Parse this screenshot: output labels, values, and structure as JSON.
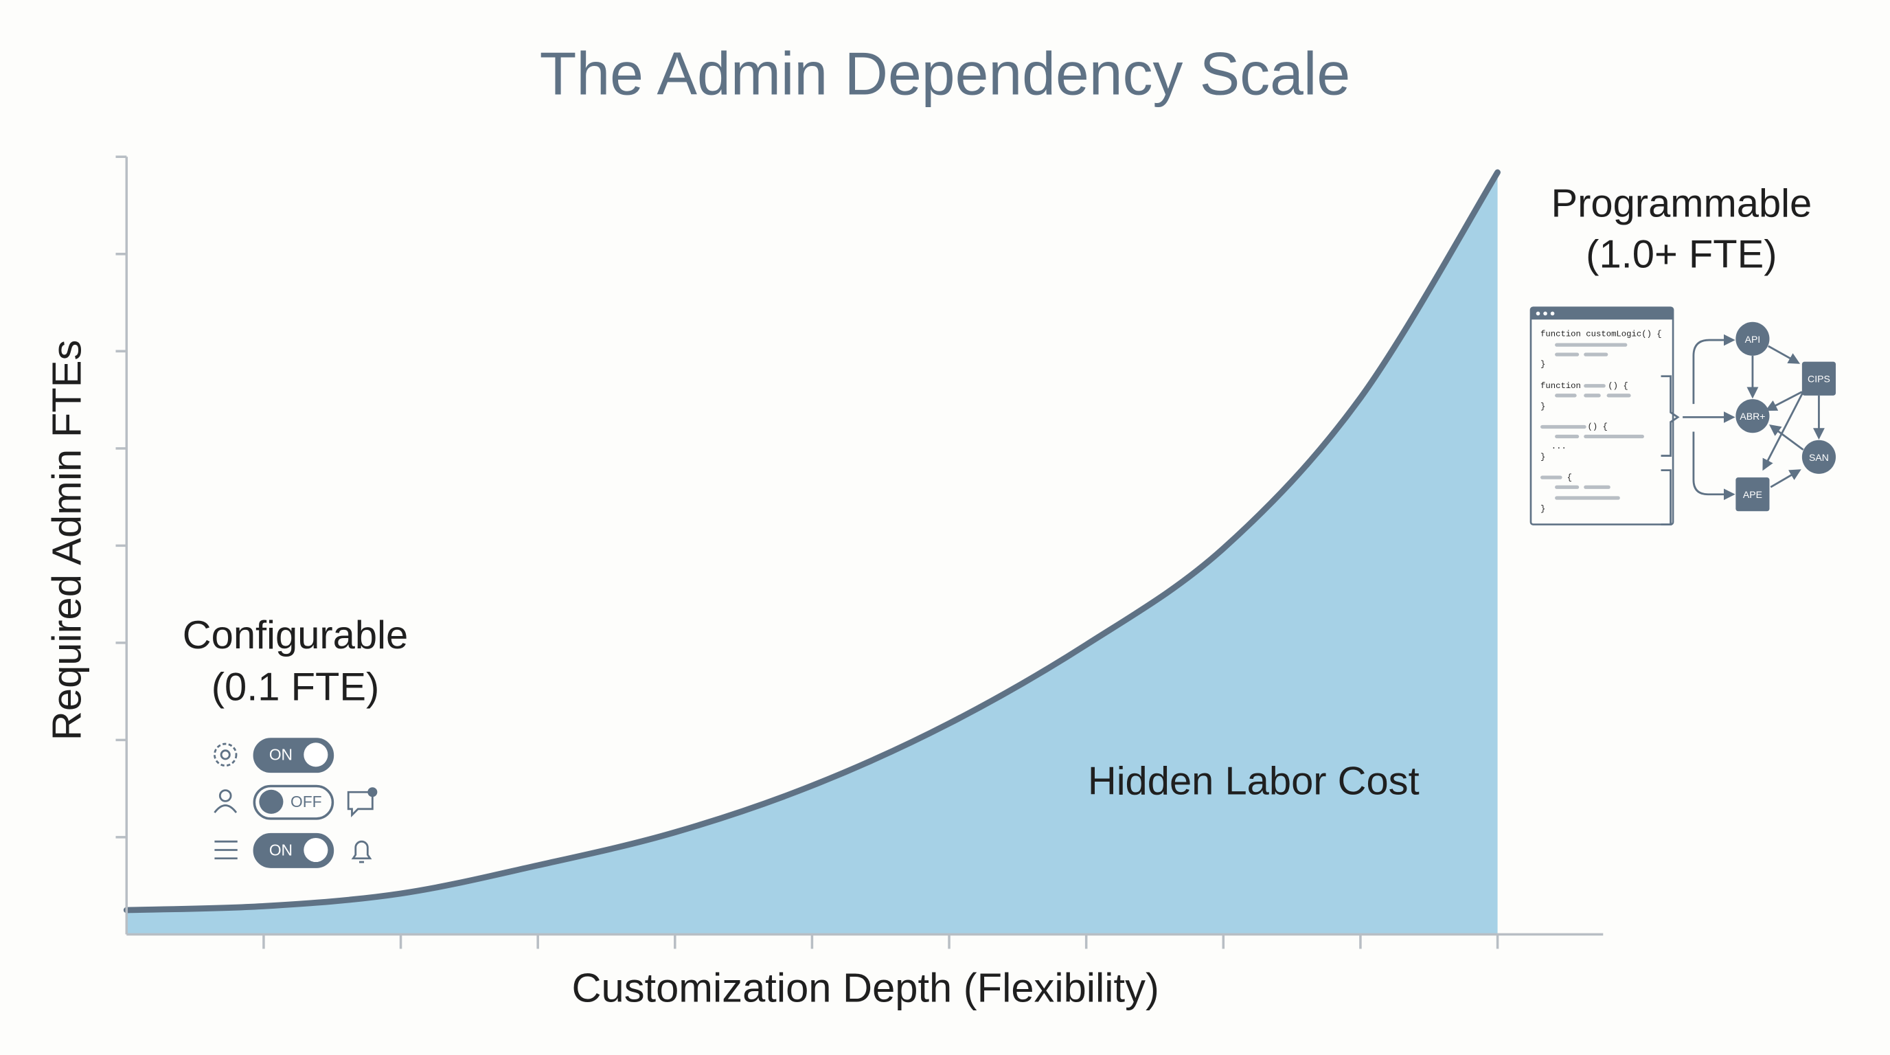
{
  "chart_data": {
    "type": "area",
    "title": "The Admin Dependency Scale",
    "x_label": "Customization Depth (Flexibility)",
    "y_label": "Required Admin FTEs",
    "x": [
      0,
      1,
      2,
      3,
      4,
      5,
      6,
      7,
      8,
      9,
      10
    ],
    "series": [
      {
        "name": "Hidden Labor Cost",
        "color": "#a6d1e6",
        "line_color": "#5f7285",
        "values": [
          0.25,
          0.29,
          0.42,
          0.71,
          1.05,
          1.53,
          2.17,
          2.98,
          3.97,
          5.52,
          7.84
        ]
      }
    ],
    "xlim": [
      0,
      10.77
    ],
    "ylim": [
      0,
      8
    ],
    "xticks": [
      1,
      2,
      3,
      4,
      5,
      6,
      7,
      8,
      9,
      10
    ],
    "yticks": [
      1,
      2,
      3,
      4,
      5,
      6,
      7,
      8
    ],
    "annotations": {
      "low": [
        "Configurable",
        "(0.1 FTE)"
      ],
      "high": [
        "Programmable",
        "(1.0+ FTE)"
      ],
      "toggles": [
        "ON",
        "OFF",
        "ON"
      ],
      "code": [
        "function customLogic() {",
        "}",
        "function",
        "() {",
        "}",
        "() {",
        "...",
        "}",
        "{",
        "}"
      ],
      "nodes": [
        "API",
        "CIPS",
        "ABR+",
        "SAN",
        "APE"
      ]
    }
  }
}
